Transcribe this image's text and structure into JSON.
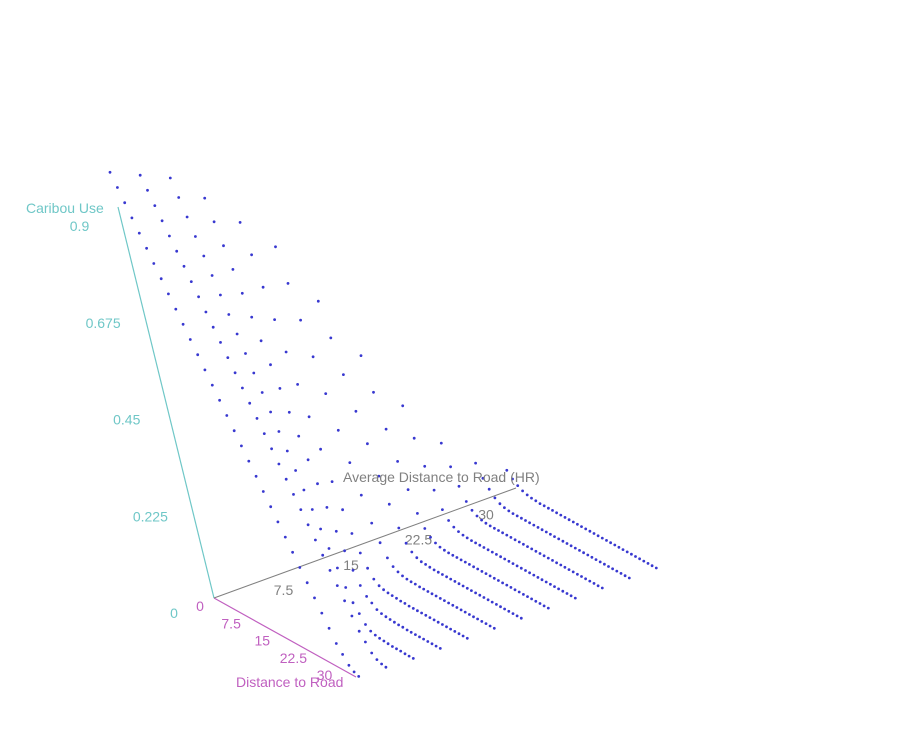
{
  "colors": {
    "z_axis": "#6fc7c7",
    "x_axis": "#c060c0",
    "y_axis": "#808080",
    "points": "#3838d0",
    "background": "#ffffff"
  },
  "chart_data": {
    "type": "scatter",
    "projection": "3d",
    "grid": false,
    "axes": {
      "x": {
        "label": "Distance to Road",
        "ticks": [
          "0",
          "7.5",
          "15",
          "22.5",
          "30"
        ],
        "range": [
          0,
          35
        ]
      },
      "y": {
        "label": "Average Distance to Road (HR)",
        "ticks": [
          "7.5",
          "15",
          "22.5",
          "30"
        ],
        "range": [
          0,
          35
        ]
      },
      "z": {
        "label": "Caribou Use",
        "ticks": [
          "0",
          "0.225",
          "0.45",
          "0.675",
          "0.9"
        ],
        "range": [
          0,
          0.9
        ]
      }
    },
    "series": [
      {
        "values_by_avg_distance": [
          {
            "avg_distance": 0,
            "caribou_use": [
              0.99,
              0.96,
              0.93,
              0.9,
              0.87,
              0.84,
              0.81,
              0.78,
              0.75,
              0.72,
              0.69,
              0.66,
              0.63,
              0.6,
              0.57,
              0.54,
              0.51,
              0.48,
              0.45,
              0.42,
              0.39,
              0.36,
              0.33,
              0.3,
              0.27,
              0.24,
              0.21,
              0.18,
              0.15,
              0.12,
              0.09,
              0.06,
              0.04,
              0.02,
              0.01,
              0.005
            ]
          },
          {
            "avg_distance": 3,
            "caribou_use": [
              0.96,
              0.93,
              0.9,
              0.87,
              0.84,
              0.81,
              0.78,
              0.75,
              0.72,
              0.69,
              0.66,
              0.63,
              0.6,
              0.57,
              0.54,
              0.51,
              0.48,
              0.45,
              0.42,
              0.39,
              0.36,
              0.33,
              0.3,
              0.27,
              0.24,
              0.21,
              0.18,
              0.15,
              0.12,
              0.09,
              0.06,
              0.04,
              0.02,
              0.01,
              0.005,
              0.003
            ]
          },
          {
            "avg_distance": 6,
            "caribou_use": [
              0.93,
              0.89,
              0.85,
              0.81,
              0.77,
              0.73,
              0.69,
              0.65,
              0.61,
              0.57,
              0.53,
              0.49,
              0.45,
              0.41,
              0.37,
              0.33,
              0.29,
              0.25,
              0.21,
              0.17,
              0.13,
              0.09,
              0.06,
              0.04,
              0.02,
              0.01,
              0.006,
              0.004,
              0.003,
              0.002,
              0.001,
              0.001,
              0.001,
              0.0,
              0.0,
              0.0
            ]
          },
          {
            "avg_distance": 9,
            "caribou_use": [
              0.86,
              0.81,
              0.76,
              0.71,
              0.66,
              0.61,
              0.56,
              0.51,
              0.46,
              0.41,
              0.36,
              0.31,
              0.26,
              0.21,
              0.16,
              0.12,
              0.08,
              0.05,
              0.03,
              0.02,
              0.01,
              0.006,
              0.004,
              0.003,
              0.002,
              0.001,
              0.001,
              0.0,
              0.0,
              0.0,
              0.0,
              0.0,
              0.0,
              0.0,
              0.0,
              0.0
            ]
          },
          {
            "avg_distance": 12,
            "caribou_use": [
              0.78,
              0.71,
              0.64,
              0.57,
              0.5,
              0.43,
              0.36,
              0.29,
              0.22,
              0.16,
              0.11,
              0.07,
              0.04,
              0.02,
              0.01,
              0.006,
              0.004,
              0.003,
              0.002,
              0.001,
              0.001,
              0.0,
              0.0,
              0.0,
              0.0,
              0.0,
              0.0,
              0.0,
              0.0,
              0.0,
              0.0,
              0.0,
              0.0,
              0.0,
              0.0,
              0.0
            ]
          },
          {
            "avg_distance": 15,
            "caribou_use": [
              0.7,
              0.62,
              0.54,
              0.46,
              0.38,
              0.3,
              0.23,
              0.16,
              0.1,
              0.06,
              0.03,
              0.015,
              0.008,
              0.004,
              0.002,
              0.001,
              0.001,
              0.0,
              0.0,
              0.0,
              0.0,
              0.0,
              0.0,
              0.0,
              0.0,
              0.0,
              0.0,
              0.0,
              0.0,
              0.0,
              0.0,
              0.0,
              0.0,
              0.0,
              0.0,
              0.0
            ]
          },
          {
            "avg_distance": 18,
            "caribou_use": [
              0.55,
              0.47,
              0.39,
              0.31,
              0.24,
              0.17,
              0.11,
              0.06,
              0.03,
              0.015,
              0.007,
              0.003,
              0.002,
              0.001,
              0.0,
              0.0,
              0.0,
              0.0,
              0.0,
              0.0,
              0.0,
              0.0,
              0.0,
              0.0,
              0.0,
              0.0,
              0.0,
              0.0,
              0.0,
              0.0,
              0.0,
              0.0,
              0.0,
              0.0,
              0.0,
              0.0
            ]
          },
          {
            "avg_distance": 21,
            "caribou_use": [
              0.4,
              0.32,
              0.24,
              0.17,
              0.11,
              0.06,
              0.03,
              0.015,
              0.007,
              0.003,
              0.001,
              0.0,
              0.0,
              0.0,
              0.0,
              0.0,
              0.0,
              0.0,
              0.0,
              0.0,
              0.0,
              0.0,
              0.0,
              0.0,
              0.0,
              0.0,
              0.0,
              0.0,
              0.0,
              0.0,
              0.0,
              0.0,
              0.0,
              0.0,
              0.0,
              0.0
            ]
          },
          {
            "avg_distance": 24,
            "caribou_use": [
              0.26,
              0.19,
              0.13,
              0.08,
              0.04,
              0.02,
              0.01,
              0.005,
              0.002,
              0.001,
              0.0,
              0.0,
              0.0,
              0.0,
              0.0,
              0.0,
              0.0,
              0.0,
              0.0,
              0.0,
              0.0,
              0.0,
              0.0,
              0.0,
              0.0,
              0.0,
              0.0,
              0.0,
              0.0,
              0.0,
              0.0,
              0.0,
              0.0,
              0.0,
              0.0,
              0.0
            ]
          },
          {
            "avg_distance": 27,
            "caribou_use": [
              0.15,
              0.1,
              0.06,
              0.03,
              0.015,
              0.007,
              0.003,
              0.001,
              0.0,
              0.0,
              0.0,
              0.0,
              0.0,
              0.0,
              0.0,
              0.0,
              0.0,
              0.0,
              0.0,
              0.0,
              0.0,
              0.0,
              0.0,
              0.0,
              0.0,
              0.0,
              0.0,
              0.0,
              0.0,
              0.0,
              0.0,
              0.0,
              0.0,
              0.0,
              0.0,
              0.0
            ]
          },
          {
            "avg_distance": 30,
            "caribou_use": [
              0.08,
              0.05,
              0.03,
              0.015,
              0.007,
              0.003,
              0.001,
              0.0,
              0.0,
              0.0,
              0.0,
              0.0,
              0.0,
              0.0,
              0.0,
              0.0,
              0.0,
              0.0,
              0.0,
              0.0,
              0.0,
              0.0,
              0.0,
              0.0,
              0.0,
              0.0,
              0.0,
              0.0,
              0.0,
              0.0,
              0.0,
              0.0,
              0.0,
              0.0,
              0.0,
              0.0
            ]
          },
          {
            "avg_distance": 33,
            "caribou_use": [
              0.04,
              0.025,
              0.015,
              0.008,
              0.004,
              0.002,
              0.001,
              0.0,
              0.0,
              0.0,
              0.0,
              0.0,
              0.0,
              0.0,
              0.0,
              0.0,
              0.0,
              0.0,
              0.0,
              0.0,
              0.0,
              0.0,
              0.0,
              0.0,
              0.0,
              0.0,
              0.0,
              0.0,
              0.0,
              0.0,
              0.0,
              0.0,
              0.0,
              0.0,
              0.0,
              0.0
            ]
          }
        ],
        "distance_to_road_values": [
          0,
          1,
          2,
          3,
          4,
          5,
          6,
          7,
          8,
          9,
          10,
          11,
          12,
          13,
          14,
          15,
          16,
          17,
          18,
          19,
          20,
          21,
          22,
          23,
          24,
          25,
          26,
          27,
          28,
          29,
          30,
          31,
          32,
          33,
          34,
          35
        ]
      }
    ]
  }
}
